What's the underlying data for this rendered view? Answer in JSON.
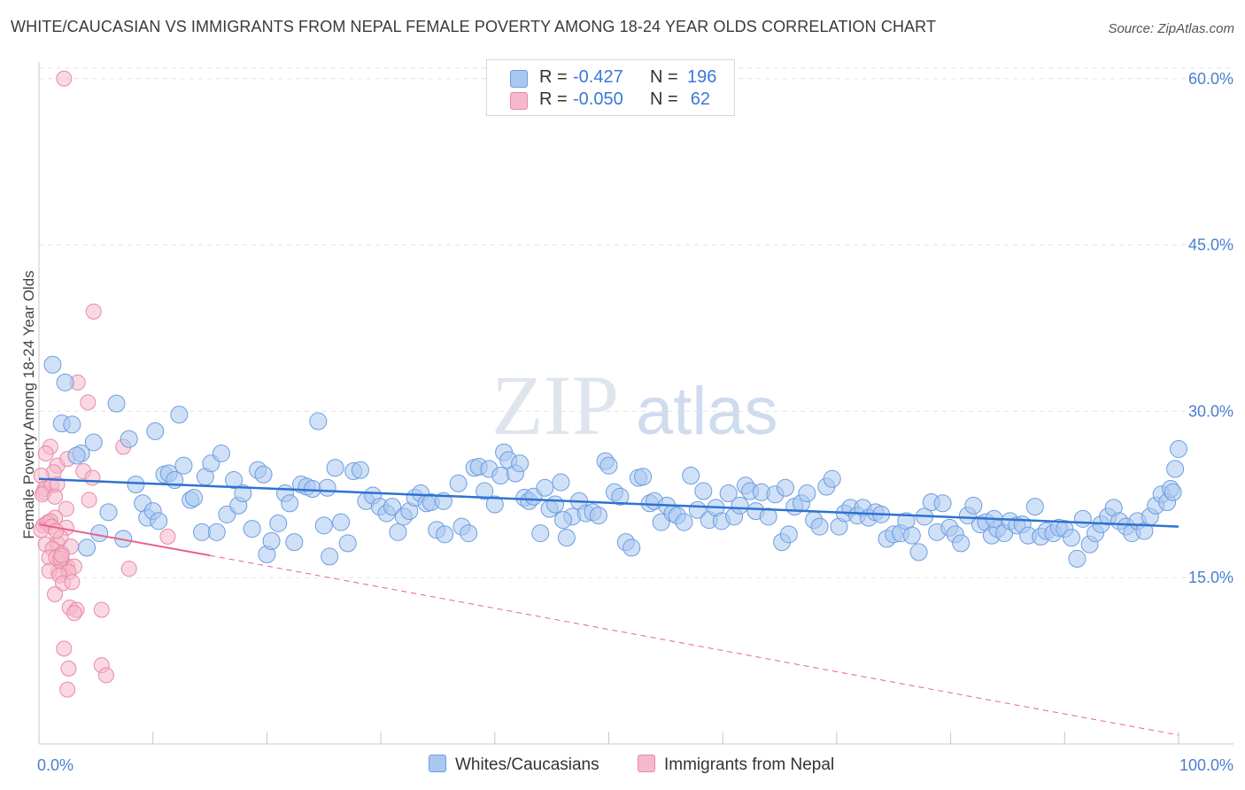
{
  "title": "WHITE/CAUCASIAN VS IMMIGRANTS FROM NEPAL FEMALE POVERTY AMONG 18-24 YEAR OLDS CORRELATION CHART",
  "source": "Source: ZipAtlas.com",
  "watermark": {
    "zip": "ZIP",
    "atlas": "atlas"
  },
  "colors": {
    "blue_fill": "#a9c8f0",
    "blue_stroke": "#6d9de0",
    "blue_line": "#2f72d2",
    "pink_fill": "#f6b8cb",
    "pink_stroke": "#e88aa8",
    "pink_line": "#e8618e",
    "grid": "#e2e2e2",
    "tick_text": "#4a7fd0"
  },
  "legend": {
    "rows": [
      {
        "r_label": "R =",
        "r_value": "-0.427",
        "n_label": "N =",
        "n_value": "196"
      },
      {
        "r_label": "R =",
        "r_value": "-0.050",
        "n_label": "N =",
        "n_value": "62"
      }
    ]
  },
  "bottom_legend": {
    "series1": "Whites/Caucasians",
    "series2": "Immigrants from Nepal"
  },
  "chart_data": {
    "type": "scatter",
    "title": "WHITE/CAUCASIAN VS IMMIGRANTS FROM NEPAL FEMALE POVERTY AMONG 18-24 YEAR OLDS CORRELATION CHART",
    "xlabel": "",
    "ylabel": "Female Poverty Among 18-24 Year Olds",
    "xlim": [
      0,
      100
    ],
    "ylim": [
      0,
      61.5
    ],
    "x_tick_labels": [
      "0.0%",
      "100.0%"
    ],
    "y_ticks": [
      15,
      30,
      45,
      60
    ],
    "y_tick_labels": [
      "15.0%",
      "30.0%",
      "45.0%",
      "60.0%"
    ],
    "grid": true,
    "legend_position": "top-center",
    "series": [
      {
        "name": "Whites/Caucasians",
        "R": -0.427,
        "N": 196,
        "trend": {
          "x": [
            0,
            100
          ],
          "y": [
            23.9,
            19.6
          ]
        },
        "points": [
          [
            1.2,
            34.2
          ],
          [
            2.3,
            32.6
          ],
          [
            2.0,
            28.9
          ],
          [
            2.9,
            28.8
          ],
          [
            3.7,
            26.2
          ],
          [
            4.8,
            27.2
          ],
          [
            3.3,
            26.0
          ],
          [
            6.8,
            30.7
          ],
          [
            7.9,
            27.5
          ],
          [
            10.2,
            28.2
          ],
          [
            12.3,
            29.7
          ],
          [
            5.3,
            19.0
          ],
          [
            4.2,
            17.7
          ],
          [
            6.1,
            20.9
          ],
          [
            7.4,
            18.5
          ],
          [
            8.5,
            23.4
          ],
          [
            9.1,
            21.7
          ],
          [
            9.5,
            20.4
          ],
          [
            10.0,
            21.0
          ],
          [
            11.0,
            24.3
          ],
          [
            11.4,
            24.4
          ],
          [
            11.9,
            23.8
          ],
          [
            12.7,
            25.1
          ],
          [
            13.3,
            22.0
          ],
          [
            13.6,
            22.2
          ],
          [
            14.3,
            19.1
          ],
          [
            14.6,
            24.1
          ],
          [
            15.1,
            25.3
          ],
          [
            15.6,
            19.1
          ],
          [
            16.0,
            26.2
          ],
          [
            16.5,
            20.7
          ],
          [
            17.1,
            23.8
          ],
          [
            17.5,
            21.5
          ],
          [
            17.9,
            22.6
          ],
          [
            18.7,
            19.4
          ],
          [
            19.2,
            24.7
          ],
          [
            19.7,
            24.3
          ],
          [
            20.0,
            17.1
          ],
          [
            20.4,
            18.3
          ],
          [
            21.0,
            19.9
          ],
          [
            21.6,
            22.6
          ],
          [
            22.0,
            21.7
          ],
          [
            22.4,
            18.2
          ],
          [
            23.0,
            23.4
          ],
          [
            23.5,
            23.2
          ],
          [
            24.0,
            23.0
          ],
          [
            24.5,
            29.1
          ],
          [
            25.0,
            19.7
          ],
          [
            25.5,
            16.9
          ],
          [
            26.0,
            24.9
          ],
          [
            26.5,
            20.0
          ],
          [
            27.1,
            18.1
          ],
          [
            27.6,
            24.6
          ],
          [
            28.2,
            24.7
          ],
          [
            28.7,
            21.9
          ],
          [
            29.3,
            22.4
          ],
          [
            29.9,
            21.4
          ],
          [
            30.5,
            20.8
          ],
          [
            31.0,
            21.4
          ],
          [
            31.5,
            19.1
          ],
          [
            32.0,
            20.5
          ],
          [
            32.5,
            21.0
          ],
          [
            33.0,
            22.2
          ],
          [
            33.5,
            22.6
          ],
          [
            34.0,
            21.7
          ],
          [
            34.4,
            21.8
          ],
          [
            34.9,
            19.3
          ],
          [
            35.5,
            21.9
          ],
          [
            35.6,
            18.9
          ],
          [
            36.8,
            23.5
          ],
          [
            37.1,
            19.6
          ],
          [
            37.7,
            19.0
          ],
          [
            38.2,
            24.9
          ],
          [
            38.6,
            25.0
          ],
          [
            39.1,
            22.8
          ],
          [
            39.5,
            24.8
          ],
          [
            40.0,
            21.6
          ],
          [
            40.5,
            24.2
          ],
          [
            40.8,
            26.3
          ],
          [
            41.2,
            25.6
          ],
          [
            41.8,
            24.4
          ],
          [
            42.2,
            25.3
          ],
          [
            42.6,
            22.2
          ],
          [
            43.0,
            21.9
          ],
          [
            43.4,
            22.3
          ],
          [
            44.0,
            19.0
          ],
          [
            44.4,
            23.1
          ],
          [
            44.8,
            21.2
          ],
          [
            45.3,
            21.6
          ],
          [
            45.8,
            23.6
          ],
          [
            46.3,
            18.6
          ],
          [
            46.8,
            20.5
          ],
          [
            47.4,
            21.9
          ],
          [
            48.0,
            20.8
          ],
          [
            48.6,
            20.9
          ],
          [
            49.1,
            20.6
          ],
          [
            49.7,
            25.5
          ],
          [
            50.5,
            22.7
          ],
          [
            51.0,
            22.3
          ],
          [
            51.5,
            18.2
          ],
          [
            52.0,
            17.7
          ],
          [
            52.6,
            24.0
          ],
          [
            53.0,
            24.1
          ],
          [
            53.6,
            21.7
          ],
          [
            54.0,
            21.9
          ],
          [
            54.6,
            20.0
          ],
          [
            55.1,
            21.5
          ],
          [
            55.6,
            20.8
          ],
          [
            56.0,
            20.6
          ],
          [
            56.6,
            20.0
          ],
          [
            57.2,
            24.2
          ],
          [
            57.8,
            21.1
          ],
          [
            58.3,
            22.8
          ],
          [
            58.8,
            20.2
          ],
          [
            59.4,
            21.3
          ],
          [
            59.9,
            20.1
          ],
          [
            60.5,
            22.6
          ],
          [
            61.0,
            20.5
          ],
          [
            61.5,
            21.5
          ],
          [
            62.0,
            23.3
          ],
          [
            62.4,
            22.8
          ],
          [
            62.9,
            21.0
          ],
          [
            63.4,
            22.7
          ],
          [
            64.0,
            20.5
          ],
          [
            64.6,
            22.5
          ],
          [
            65.2,
            18.2
          ],
          [
            65.8,
            18.9
          ],
          [
            66.3,
            21.4
          ],
          [
            66.9,
            21.7
          ],
          [
            67.4,
            22.6
          ],
          [
            68.0,
            20.2
          ],
          [
            68.5,
            19.6
          ],
          [
            69.1,
            23.2
          ],
          [
            69.6,
            23.9
          ],
          [
            70.2,
            19.6
          ],
          [
            70.7,
            20.8
          ],
          [
            71.2,
            21.3
          ],
          [
            71.8,
            20.6
          ],
          [
            72.3,
            21.3
          ],
          [
            72.8,
            20.4
          ],
          [
            73.4,
            20.9
          ],
          [
            73.9,
            20.7
          ],
          [
            74.4,
            18.5
          ],
          [
            75.0,
            18.9
          ],
          [
            75.6,
            19.0
          ],
          [
            76.1,
            20.1
          ],
          [
            76.6,
            18.8
          ],
          [
            77.2,
            17.3
          ],
          [
            77.7,
            20.5
          ],
          [
            78.3,
            21.8
          ],
          [
            78.8,
            19.1
          ],
          [
            79.3,
            21.7
          ],
          [
            79.9,
            19.5
          ],
          [
            80.4,
            18.9
          ],
          [
            80.9,
            18.1
          ],
          [
            81.5,
            20.6
          ],
          [
            82.0,
            21.5
          ],
          [
            82.6,
            19.8
          ],
          [
            83.1,
            20.0
          ],
          [
            83.6,
            18.8
          ],
          [
            84.1,
            19.4
          ],
          [
            84.7,
            19.0
          ],
          [
            85.2,
            20.1
          ],
          [
            85.8,
            19.7
          ],
          [
            86.3,
            19.8
          ],
          [
            86.8,
            18.8
          ],
          [
            87.4,
            21.4
          ],
          [
            87.9,
            18.7
          ],
          [
            88.4,
            19.2
          ],
          [
            89.0,
            19.0
          ],
          [
            89.5,
            19.5
          ],
          [
            90.0,
            19.4
          ],
          [
            90.6,
            18.6
          ],
          [
            91.1,
            16.7
          ],
          [
            91.6,
            20.3
          ],
          [
            92.2,
            18.0
          ],
          [
            92.7,
            19.0
          ],
          [
            93.2,
            19.8
          ],
          [
            93.8,
            20.5
          ],
          [
            94.3,
            21.3
          ],
          [
            94.8,
            20.1
          ],
          [
            95.4,
            19.6
          ],
          [
            95.9,
            19.0
          ],
          [
            96.4,
            20.1
          ],
          [
            97.0,
            19.2
          ],
          [
            97.5,
            20.5
          ],
          [
            98.0,
            21.5
          ],
          [
            98.5,
            22.5
          ],
          [
            99.0,
            21.8
          ],
          [
            99.3,
            23.0
          ],
          [
            99.5,
            22.7
          ],
          [
            99.7,
            24.8
          ],
          [
            100.0,
            26.6
          ],
          [
            10.5,
            20.1
          ],
          [
            25.3,
            23.1
          ],
          [
            50.0,
            25.1
          ],
          [
            65.5,
            23.1
          ],
          [
            83.8,
            20.3
          ],
          [
            46.0,
            20.2
          ]
        ]
      },
      {
        "name": "Immigrants from Nepal",
        "R": -0.05,
        "N": 62,
        "trend": {
          "x": [
            0,
            15
          ],
          "y": [
            19.8,
            17.0
          ]
        },
        "trend_dashed": {
          "x": [
            15,
            100
          ],
          "y": [
            17.0,
            0.8
          ]
        },
        "points": [
          [
            2.2,
            60.0
          ],
          [
            4.8,
            39.0
          ],
          [
            3.4,
            32.6
          ],
          [
            4.3,
            30.8
          ],
          [
            7.4,
            26.8
          ],
          [
            1.0,
            26.8
          ],
          [
            0.6,
            26.2
          ],
          [
            1.6,
            25.1
          ],
          [
            2.5,
            25.7
          ],
          [
            3.9,
            24.6
          ],
          [
            4.7,
            24.0
          ],
          [
            1.3,
            24.5
          ],
          [
            0.2,
            24.2
          ],
          [
            0.5,
            23.0
          ],
          [
            0.4,
            22.7
          ],
          [
            1.1,
            23.3
          ],
          [
            1.6,
            23.4
          ],
          [
            0.3,
            22.5
          ],
          [
            1.4,
            22.3
          ],
          [
            4.4,
            22.0
          ],
          [
            2.4,
            21.2
          ],
          [
            1.4,
            20.4
          ],
          [
            0.8,
            20.0
          ],
          [
            0.4,
            19.7
          ],
          [
            0.7,
            19.9
          ],
          [
            1.0,
            20.1
          ],
          [
            1.1,
            19.6
          ],
          [
            2.4,
            19.5
          ],
          [
            0.2,
            19.3
          ],
          [
            0.6,
            18.0
          ],
          [
            1.6,
            18.1
          ],
          [
            1.9,
            18.6
          ],
          [
            1.2,
            17.6
          ],
          [
            2.0,
            17.2
          ],
          [
            2.8,
            17.8
          ],
          [
            11.3,
            18.7
          ],
          [
            0.9,
            16.8
          ],
          [
            1.8,
            16.5
          ],
          [
            1.5,
            16.8
          ],
          [
            2.2,
            16.2
          ],
          [
            2.5,
            16.0
          ],
          [
            1.9,
            16.7
          ],
          [
            1.7,
            15.5
          ],
          [
            0.9,
            15.6
          ],
          [
            3.1,
            16.0
          ],
          [
            7.9,
            15.8
          ],
          [
            2.6,
            15.5
          ],
          [
            1.8,
            15.2
          ],
          [
            2.1,
            14.5
          ],
          [
            2.9,
            14.6
          ],
          [
            1.4,
            13.5
          ],
          [
            2.7,
            12.3
          ],
          [
            3.3,
            12.1
          ],
          [
            5.5,
            12.1
          ],
          [
            3.1,
            11.8
          ],
          [
            2.2,
            8.6
          ],
          [
            2.6,
            6.8
          ],
          [
            5.5,
            7.1
          ],
          [
            5.9,
            6.2
          ],
          [
            2.5,
            4.9
          ],
          [
            1.5,
            19.2
          ],
          [
            2.0,
            17.0
          ]
        ]
      }
    ]
  }
}
